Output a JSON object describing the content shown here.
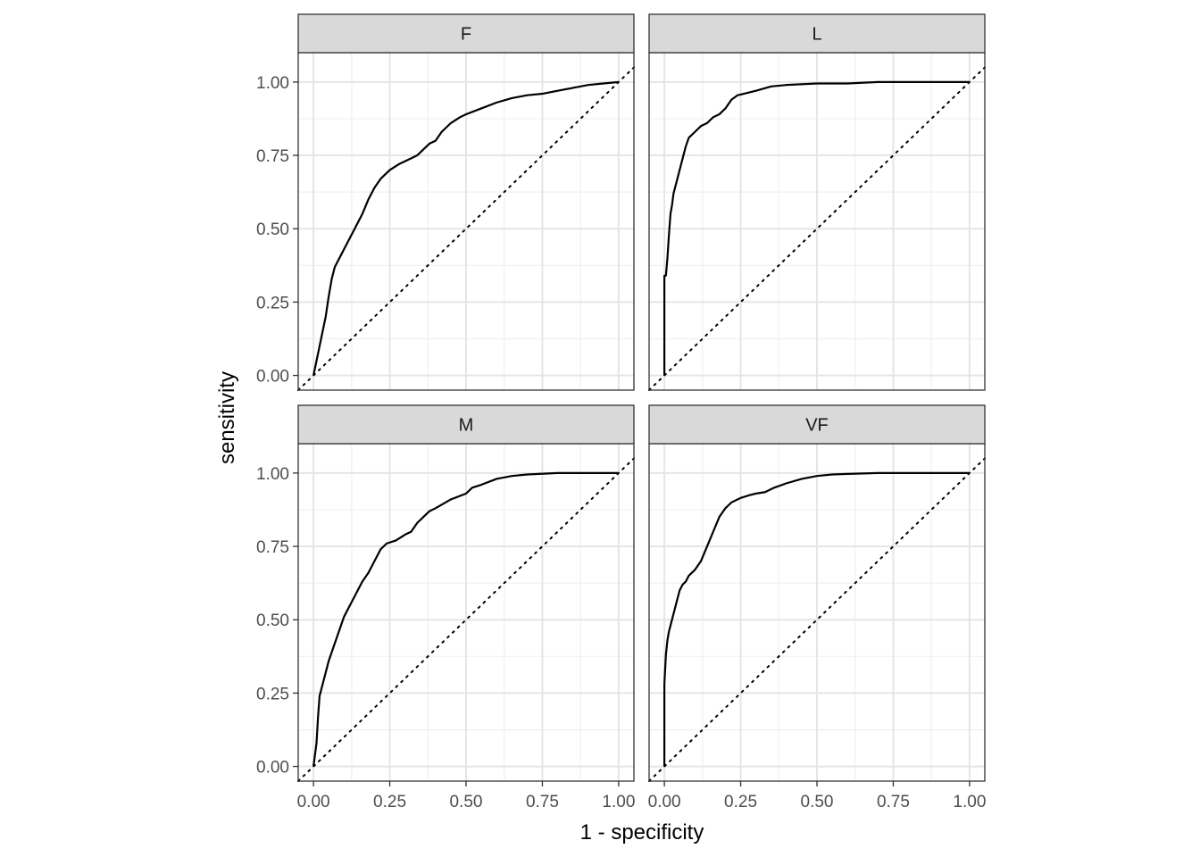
{
  "chart_data": {
    "type": "line",
    "title": "",
    "xlabel": "1 - specificity",
    "ylabel": "sensitivity",
    "xlim": [
      -0.05,
      1.05
    ],
    "ylim": [
      -0.05,
      1.1
    ],
    "x_ticks": [
      "0.00",
      "0.25",
      "0.50",
      "0.75",
      "1.00"
    ],
    "y_ticks": [
      "0.00",
      "0.25",
      "0.50",
      "0.75",
      "1.00"
    ],
    "grid": true,
    "reference_line": "diagonal y = x (dotted)",
    "facets": [
      {
        "label": "F",
        "x": [
          0,
          0.01,
          0.02,
          0.03,
          0.04,
          0.05,
          0.06,
          0.07,
          0.08,
          0.1,
          0.12,
          0.14,
          0.16,
          0.18,
          0.2,
          0.22,
          0.25,
          0.28,
          0.32,
          0.34,
          0.36,
          0.38,
          0.4,
          0.42,
          0.45,
          0.48,
          0.5,
          0.55,
          0.6,
          0.65,
          0.7,
          0.75,
          0.8,
          0.85,
          0.9,
          0.95,
          1.0
        ],
        "y": [
          0,
          0.05,
          0.1,
          0.15,
          0.2,
          0.27,
          0.33,
          0.37,
          0.39,
          0.43,
          0.47,
          0.51,
          0.55,
          0.6,
          0.64,
          0.67,
          0.7,
          0.72,
          0.74,
          0.75,
          0.77,
          0.79,
          0.8,
          0.83,
          0.86,
          0.88,
          0.89,
          0.91,
          0.93,
          0.945,
          0.955,
          0.96,
          0.97,
          0.98,
          0.99,
          0.995,
          1.0
        ]
      },
      {
        "label": "L",
        "x": [
          0,
          0.0,
          0.005,
          0.01,
          0.015,
          0.02,
          0.025,
          0.03,
          0.04,
          0.05,
          0.06,
          0.07,
          0.08,
          0.09,
          0.1,
          0.12,
          0.14,
          0.16,
          0.18,
          0.2,
          0.22,
          0.24,
          0.26,
          0.3,
          0.35,
          0.4,
          0.5,
          0.6,
          0.7,
          0.8,
          0.9,
          1.0
        ],
        "y": [
          0,
          0.34,
          0.34,
          0.4,
          0.48,
          0.55,
          0.58,
          0.62,
          0.66,
          0.7,
          0.74,
          0.78,
          0.81,
          0.82,
          0.83,
          0.85,
          0.86,
          0.88,
          0.89,
          0.91,
          0.94,
          0.955,
          0.96,
          0.97,
          0.985,
          0.99,
          0.995,
          0.995,
          1.0,
          1.0,
          1.0,
          1.0
        ]
      },
      {
        "label": "M",
        "x": [
          0,
          0.01,
          0.015,
          0.02,
          0.03,
          0.04,
          0.05,
          0.06,
          0.07,
          0.08,
          0.1,
          0.12,
          0.14,
          0.16,
          0.18,
          0.2,
          0.22,
          0.24,
          0.27,
          0.3,
          0.32,
          0.34,
          0.36,
          0.38,
          0.4,
          0.45,
          0.5,
          0.52,
          0.55,
          0.6,
          0.65,
          0.7,
          0.8,
          0.9,
          1.0
        ],
        "y": [
          0,
          0.08,
          0.17,
          0.24,
          0.28,
          0.32,
          0.36,
          0.39,
          0.42,
          0.45,
          0.51,
          0.55,
          0.59,
          0.63,
          0.66,
          0.7,
          0.74,
          0.76,
          0.77,
          0.79,
          0.8,
          0.83,
          0.85,
          0.87,
          0.88,
          0.91,
          0.93,
          0.95,
          0.96,
          0.98,
          0.99,
          0.995,
          1.0,
          1.0,
          1.0
        ]
      },
      {
        "label": "VF",
        "x": [
          0,
          0.0,
          0.005,
          0.01,
          0.015,
          0.02,
          0.03,
          0.04,
          0.05,
          0.06,
          0.07,
          0.08,
          0.1,
          0.12,
          0.14,
          0.16,
          0.18,
          0.2,
          0.22,
          0.25,
          0.28,
          0.3,
          0.33,
          0.36,
          0.4,
          0.45,
          0.5,
          0.55,
          0.6,
          0.7,
          0.8,
          0.9,
          1.0
        ],
        "y": [
          0,
          0.28,
          0.38,
          0.43,
          0.46,
          0.48,
          0.52,
          0.56,
          0.6,
          0.62,
          0.63,
          0.65,
          0.67,
          0.7,
          0.75,
          0.8,
          0.85,
          0.88,
          0.9,
          0.915,
          0.925,
          0.93,
          0.935,
          0.95,
          0.965,
          0.98,
          0.99,
          0.995,
          0.997,
          1.0,
          1.0,
          1.0,
          1.0
        ]
      }
    ]
  }
}
